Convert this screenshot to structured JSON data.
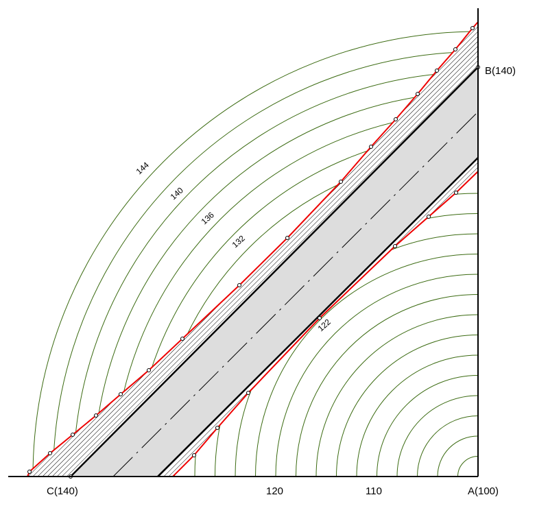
{
  "points": {
    "b": "B(140)",
    "c": "C(140)",
    "a": "A(100)"
  },
  "axis_labels": [
    "120",
    "110"
  ],
  "contour_labels": [
    "144",
    "140",
    "136",
    "132",
    "122"
  ]
}
